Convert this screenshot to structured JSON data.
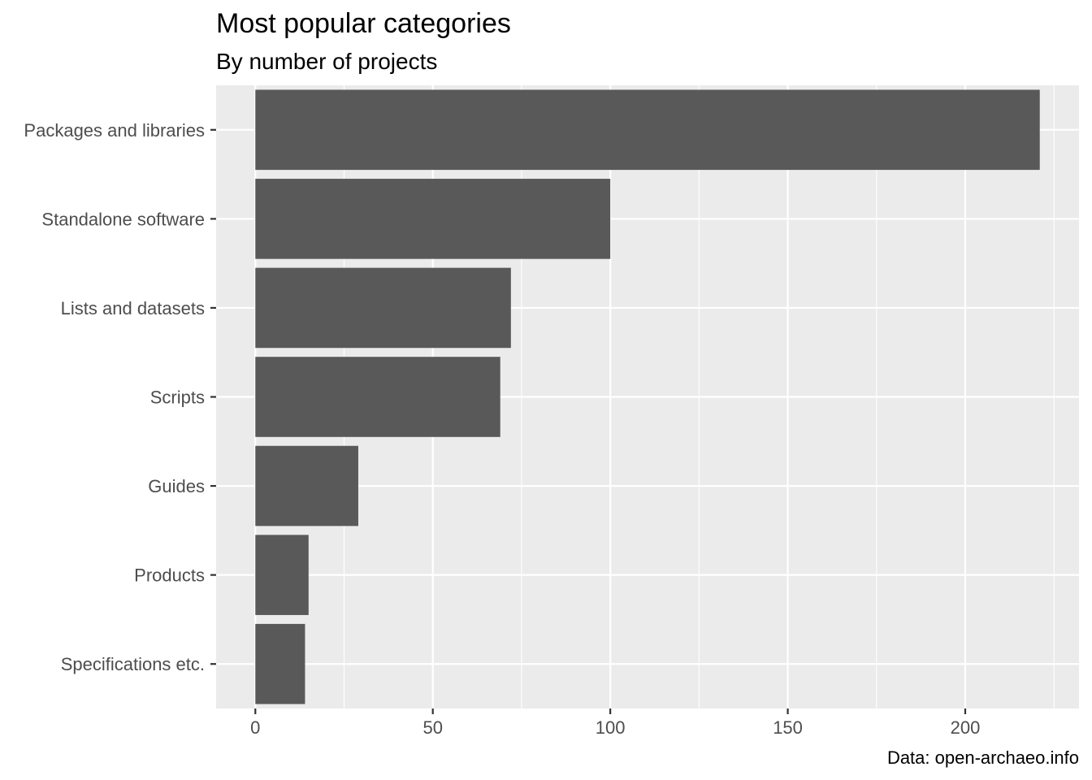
{
  "chart_data": {
    "type": "bar",
    "orientation": "horizontal",
    "title": "Most popular categories",
    "subtitle": "By number of projects",
    "caption": "Data: open-archaeo.info",
    "xlabel": "",
    "ylabel": "",
    "categories": [
      "Packages and libraries",
      "Standalone software",
      "Lists and datasets",
      "Scripts",
      "Guides",
      "Products",
      "Specifications etc."
    ],
    "values": [
      221,
      100,
      72,
      69,
      29,
      15,
      14
    ],
    "xlim": [
      -11.05,
      232.05
    ],
    "x_ticks": [
      0,
      50,
      100,
      150,
      200
    ],
    "x_tick_labels": [
      "0",
      "50",
      "100",
      "150",
      "200"
    ],
    "grid": true,
    "legend": "none",
    "colors": {
      "bar": "#595959",
      "panel": "#ebebeb",
      "grid": "#ffffff",
      "axis_text": "#4d4d4d",
      "tick": "#333333"
    }
  }
}
